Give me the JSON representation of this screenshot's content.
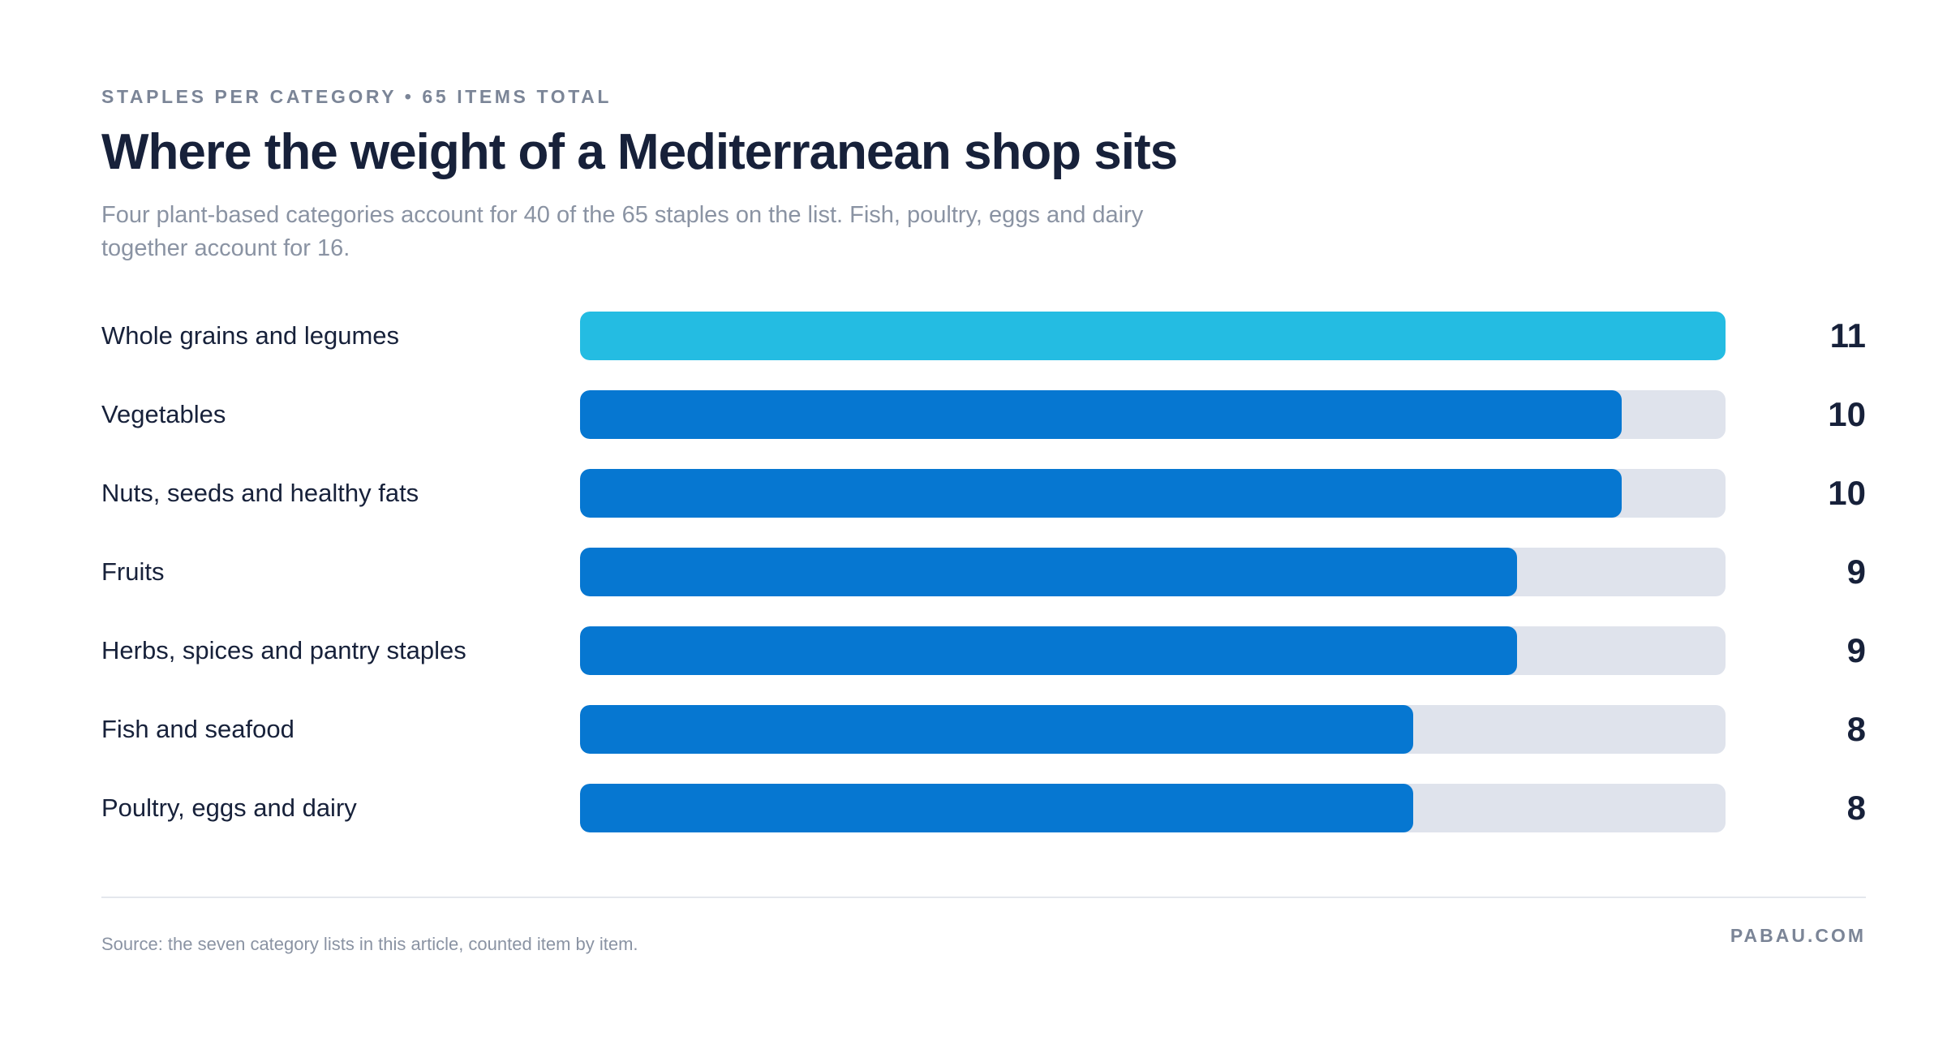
{
  "header": {
    "eyebrow": "STAPLES PER CATEGORY • 65 ITEMS TOTAL",
    "title": "Where the weight of a Mediterranean shop sits",
    "subtitle": "Four plant-based categories account for 40 of the 65 staples on the list. Fish, poultry, eggs and dairy together account for 16."
  },
  "chart_data": {
    "type": "bar",
    "orientation": "horizontal",
    "categories": [
      "Whole grains and legumes",
      "Vegetables",
      "Nuts, seeds and healthy fats",
      "Fruits",
      "Herbs, spices and pantry staples",
      "Fish and seafood",
      "Poultry, eggs and dairy"
    ],
    "values": [
      11,
      10,
      10,
      9,
      9,
      8,
      8
    ],
    "xlim": [
      0,
      11
    ],
    "grid": false,
    "highlight_index": 0,
    "colors": {
      "highlight": "#24bce2",
      "bar": "#0677d1",
      "track": "#dfe3ec"
    }
  },
  "footer": {
    "source": "Source: the seven category lists in this article, counted item by item.",
    "brand": "PABAU.COM"
  }
}
